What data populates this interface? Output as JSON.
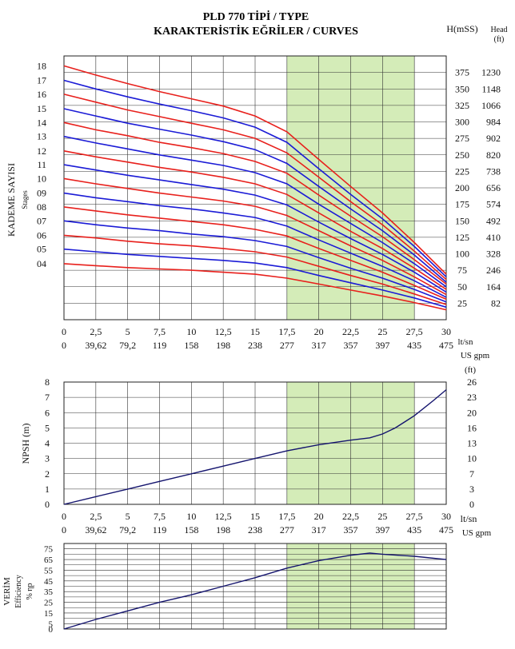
{
  "title": {
    "line1": "PLD 770  TİPİ / TYPE",
    "line2": "KARAKTERİSTİK EĞRİLER / CURVES"
  },
  "colors": {
    "red": "#e8201c",
    "blue": "#1b1bd6",
    "navy": "#14146e",
    "band": "#d4ecb8"
  },
  "chart_data": [
    {
      "type": "line",
      "name": "head-curves",
      "ylabel": "KADEME SAYISI",
      "ylabel2": "Stages",
      "right_label1": "H(mSS)",
      "right_label2": "Head",
      "right_label3": "(ft)",
      "x_unit1": "lt/sn",
      "x_unit2": "US gpm",
      "xlim": [
        0,
        30
      ],
      "ylim": [
        0,
        400
      ],
      "x_ticks": [
        "0",
        "2,5",
        "5",
        "7,5",
        "10",
        "12,5",
        "15",
        "17,5",
        "20",
        "22,5",
        "25",
        "27,5",
        "30"
      ],
      "x_ticks_gpm": [
        "0",
        "39,62",
        "79,2",
        "119",
        "158",
        "198",
        "238",
        "277",
        "317",
        "357",
        "397",
        "435",
        "475"
      ],
      "stage_labels": [
        "04",
        "05",
        "06",
        "07",
        "08",
        "09",
        "10",
        "11",
        "12",
        "13",
        "14",
        "15",
        "16",
        "17",
        "18"
      ],
      "head_m_ticks": [
        "25",
        "50",
        "75",
        "100",
        "125",
        "150",
        "175",
        "200",
        "225",
        "250",
        "275",
        "300",
        "325",
        "350",
        "375"
      ],
      "head_ft_ticks": [
        "82",
        "164",
        "246",
        "328",
        "410",
        "492",
        "574",
        "656",
        "738",
        "820",
        "902",
        "984",
        "1066",
        "1148",
        "1230"
      ],
      "shaded_x": [
        17.5,
        27.5
      ],
      "x": [
        0,
        2.5,
        5,
        7.5,
        10,
        12.5,
        15,
        17.5,
        20,
        22.5,
        25,
        27.5,
        30
      ],
      "series": [
        {
          "stages": 4,
          "values": [
            85,
            82,
            79,
            77,
            75,
            72,
            69,
            63,
            54,
            45,
            36,
            26,
            15
          ]
        },
        {
          "stages": 5,
          "values": [
            107,
            103,
            99,
            96,
            93,
            90,
            86,
            79,
            67,
            56,
            45,
            33,
            19
          ]
        },
        {
          "stages": 6,
          "values": [
            128,
            124,
            119,
            115,
            112,
            108,
            103,
            95,
            81,
            67,
            54,
            39,
            23
          ]
        },
        {
          "stages": 7,
          "values": [
            150,
            144,
            139,
            135,
            130,
            126,
            120,
            111,
            94,
            78,
            63,
            46,
            27
          ]
        },
        {
          "stages": 8,
          "values": [
            171,
            165,
            159,
            154,
            149,
            144,
            137,
            127,
            108,
            90,
            72,
            52,
            31
          ]
        },
        {
          "stages": 9,
          "values": [
            192,
            185,
            179,
            173,
            168,
            162,
            155,
            142,
            121,
            101,
            81,
            59,
            34
          ]
        },
        {
          "stages": 10,
          "values": [
            214,
            206,
            199,
            192,
            186,
            180,
            172,
            158,
            135,
            112,
            90,
            65,
            38
          ]
        },
        {
          "stages": 11,
          "values": [
            235,
            227,
            219,
            212,
            205,
            198,
            189,
            174,
            148,
            123,
            99,
            72,
            42
          ]
        },
        {
          "stages": 12,
          "values": [
            256,
            247,
            239,
            231,
            224,
            216,
            206,
            190,
            162,
            134,
            108,
            78,
            46
          ]
        },
        {
          "stages": 13,
          "values": [
            278,
            268,
            259,
            250,
            242,
            234,
            223,
            206,
            175,
            146,
            117,
            85,
            50
          ]
        },
        {
          "stages": 14,
          "values": [
            299,
            288,
            279,
            269,
            261,
            252,
            240,
            222,
            189,
            157,
            126,
            91,
            54
          ]
        },
        {
          "stages": 15,
          "values": [
            320,
            309,
            298,
            289,
            280,
            270,
            258,
            237,
            202,
            168,
            135,
            98,
            57
          ]
        },
        {
          "stages": 16,
          "values": [
            342,
            330,
            318,
            308,
            298,
            288,
            275,
            253,
            216,
            179,
            144,
            104,
            61
          ]
        },
        {
          "stages": 17,
          "values": [
            363,
            350,
            338,
            327,
            317,
            306,
            292,
            269,
            229,
            190,
            153,
            111,
            65
          ]
        },
        {
          "stages": 18,
          "values": [
            385,
            371,
            358,
            346,
            335,
            324,
            309,
            285,
            243,
            202,
            162,
            117,
            69
          ]
        }
      ]
    },
    {
      "type": "line",
      "name": "npsh",
      "ylabel": "NPSH (m)",
      "right_label": "(ft)",
      "x_unit1": "lt/sn",
      "x_unit2": "US gpm",
      "xlim": [
        0,
        30
      ],
      "ylim": [
        0,
        8
      ],
      "y_ticks": [
        "0",
        "1",
        "2",
        "3",
        "4",
        "5",
        "6",
        "7",
        "8"
      ],
      "ft_ticks": [
        "0",
        "3",
        "7",
        "10",
        "13",
        "16",
        "20",
        "23",
        "26"
      ],
      "x_ticks": [
        "0",
        "2,5",
        "5",
        "7,5",
        "10",
        "12,5",
        "15",
        "17,5",
        "20",
        "22,5",
        "25",
        "27,5",
        "30"
      ],
      "x_ticks_gpm": [
        "0",
        "39,62",
        "79,2",
        "119",
        "158",
        "198",
        "238",
        "277",
        "317",
        "357",
        "397",
        "435",
        "475"
      ],
      "shaded_x": [
        17.5,
        27.5
      ],
      "x": [
        0,
        2.5,
        5,
        7.5,
        10,
        12.5,
        15,
        17.5,
        20,
        22.5,
        24,
        25,
        26,
        27.5,
        29,
        30
      ],
      "values": [
        0,
        0.5,
        1.0,
        1.5,
        2.0,
        2.5,
        3.0,
        3.5,
        3.9,
        4.2,
        4.35,
        4.6,
        5.0,
        5.8,
        6.8,
        7.5
      ]
    },
    {
      "type": "line",
      "name": "efficiency",
      "ylabel": "VERİM",
      "ylabel2": "Efficiency",
      "ylabel3": "% ηp",
      "xlim": [
        0,
        30
      ],
      "ylim": [
        0,
        80
      ],
      "y_ticks": [
        "0",
        "5",
        "15",
        "25",
        "35",
        "45",
        "55",
        "65",
        "75"
      ],
      "shaded_x": [
        17.5,
        27.5
      ],
      "x": [
        0,
        2.5,
        5,
        7.5,
        10,
        12.5,
        15,
        17.5,
        20,
        22.5,
        24,
        25,
        27.5,
        30
      ],
      "values": [
        0,
        9,
        17,
        25,
        32,
        40,
        48,
        57,
        64,
        69,
        71,
        70,
        68,
        65
      ]
    }
  ]
}
